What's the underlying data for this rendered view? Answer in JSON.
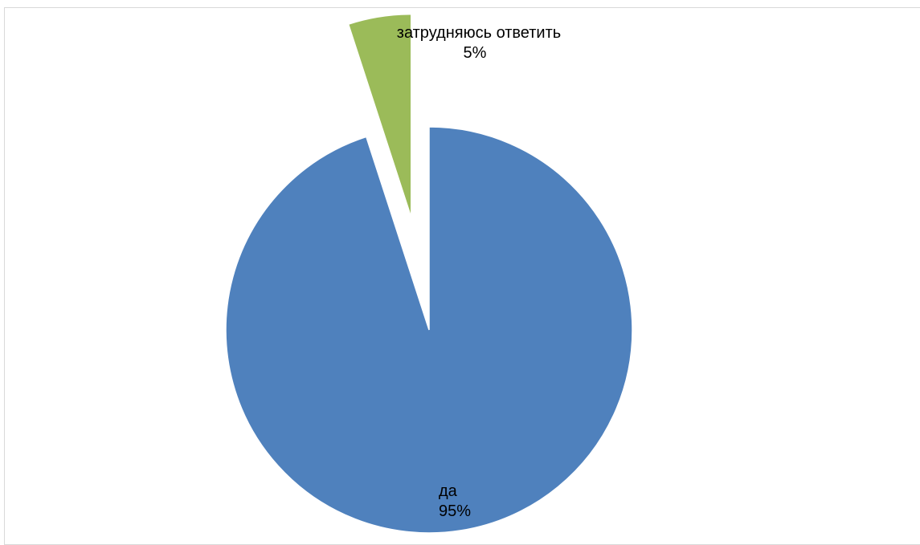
{
  "chart_data": {
    "type": "pie",
    "title": "",
    "slices": [
      {
        "label": "да",
        "value": 95,
        "value_label": "95%",
        "color": "#4f81bd",
        "exploded": false
      },
      {
        "label": "затрудняюсь ответить",
        "value": 5,
        "value_label": "5%",
        "color": "#9bbb59",
        "exploded": true
      }
    ],
    "legend": "none",
    "data_labels": "category name and percentage"
  }
}
